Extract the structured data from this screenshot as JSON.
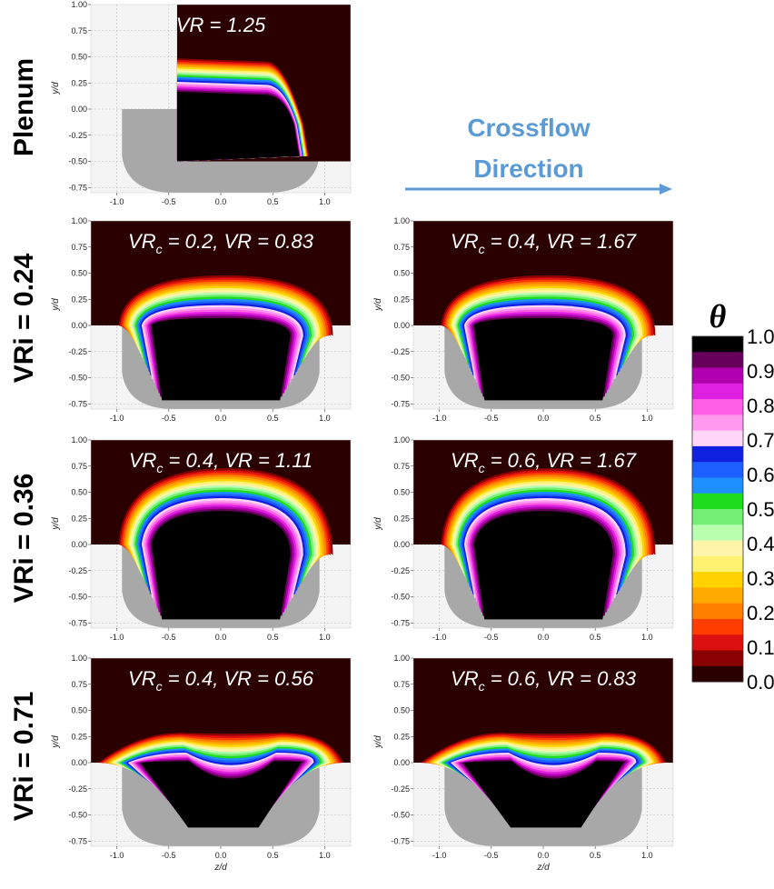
{
  "figure": {
    "row_labels": [
      "Plenum",
      "VRi = 0.24",
      "VRi = 0.36",
      "VRi = 0.71"
    ],
    "crossflow_label": [
      "Crossflow",
      "Direction"
    ],
    "colorbar_title": "θ",
    "colors": {
      "crossflow": "#5b9bd5",
      "frame": "#f0f0f0",
      "grid": "#999999"
    }
  },
  "chart_data": {
    "type": "heatmap",
    "xlabel": "z/d",
    "ylabel": "y/d",
    "xlim": [
      -1.25,
      1.25
    ],
    "ylim": [
      -0.8,
      1.0
    ],
    "xticks": [
      "-1.0",
      "-0.5",
      "0.0",
      "0.5",
      "1.0"
    ],
    "yticks": [
      "1.00",
      "0.75",
      "0.50",
      "0.25",
      "0.00",
      "-0.25",
      "-0.50",
      "-0.75"
    ],
    "colorbar": {
      "label": "θ",
      "ticks": [
        "1.0",
        "0.9",
        "0.8",
        "0.7",
        "0.6",
        "0.5",
        "0.4",
        "0.3",
        "0.2",
        "0.1",
        "0.0"
      ],
      "levels": [
        0.0,
        0.05,
        0.1,
        0.15,
        0.2,
        0.25,
        0.3,
        0.35,
        0.4,
        0.45,
        0.5,
        0.55,
        0.6,
        0.65,
        0.7,
        0.75,
        0.8,
        0.85,
        0.9,
        0.95
      ],
      "colors": [
        "#2b0000",
        "#8b0000",
        "#dd1010",
        "#ff3d00",
        "#ff7f00",
        "#ffaa00",
        "#ffd200",
        "#fff270",
        "#fff4aa",
        "#b8ffb0",
        "#74ef74",
        "#1edc1e",
        "#1e8fff",
        "#1e5fff",
        "#1020e0",
        "#ffd6f7",
        "#ff99ee",
        "#ff5fe6",
        "#e020e0",
        "#b000b0",
        "#66005c",
        "#000000"
      ]
    },
    "panels": [
      {
        "title": "VR = 1.25",
        "row": "Plenum",
        "VR": 1.25,
        "core_center_z": 0.25,
        "core_bottom_y": -0.5,
        "plume_peak_y": 0.5
      },
      {
        "title_main": "VR",
        "title_sub": "c",
        "title_rest": " = 0.2, VR = 0.83",
        "row": "VRi = 0.24",
        "VRi": 0.24,
        "VRc": 0.2,
        "VR": 0.83,
        "plume_peak_y": 0.5
      },
      {
        "title_main": "VR",
        "title_sub": "c",
        "title_rest": " = 0.4, VR = 1.67",
        "row": "VRi = 0.24",
        "VRi": 0.24,
        "VRc": 0.4,
        "VR": 1.67,
        "plume_peak_y": 0.5
      },
      {
        "title_main": "VR",
        "title_sub": "c",
        "title_rest": " = 0.4, VR = 1.11",
        "row": "VRi = 0.36",
        "VRi": 0.36,
        "VRc": 0.4,
        "VR": 1.11,
        "plume_peak_y": 0.75
      },
      {
        "title_main": "VR",
        "title_sub": "c",
        "title_rest": " = 0.6, VR = 1.67",
        "row": "VRi = 0.36",
        "VRi": 0.36,
        "VRc": 0.6,
        "VR": 1.67,
        "plume_peak_y": 0.75
      },
      {
        "title_main": "VR",
        "title_sub": "c",
        "title_rest": " = 0.4, VR = 0.56",
        "row": "VRi = 0.71",
        "VRi": 0.71,
        "VRc": 0.4,
        "VR": 0.56,
        "plume_peak_y": 0.3
      },
      {
        "title_main": "VR",
        "title_sub": "c",
        "title_rest": " = 0.6, VR = 0.83",
        "row": "VRi = 0.71",
        "VRi": 0.71,
        "VRc": 0.6,
        "VR": 0.83,
        "plume_peak_y": 0.3
      }
    ]
  }
}
